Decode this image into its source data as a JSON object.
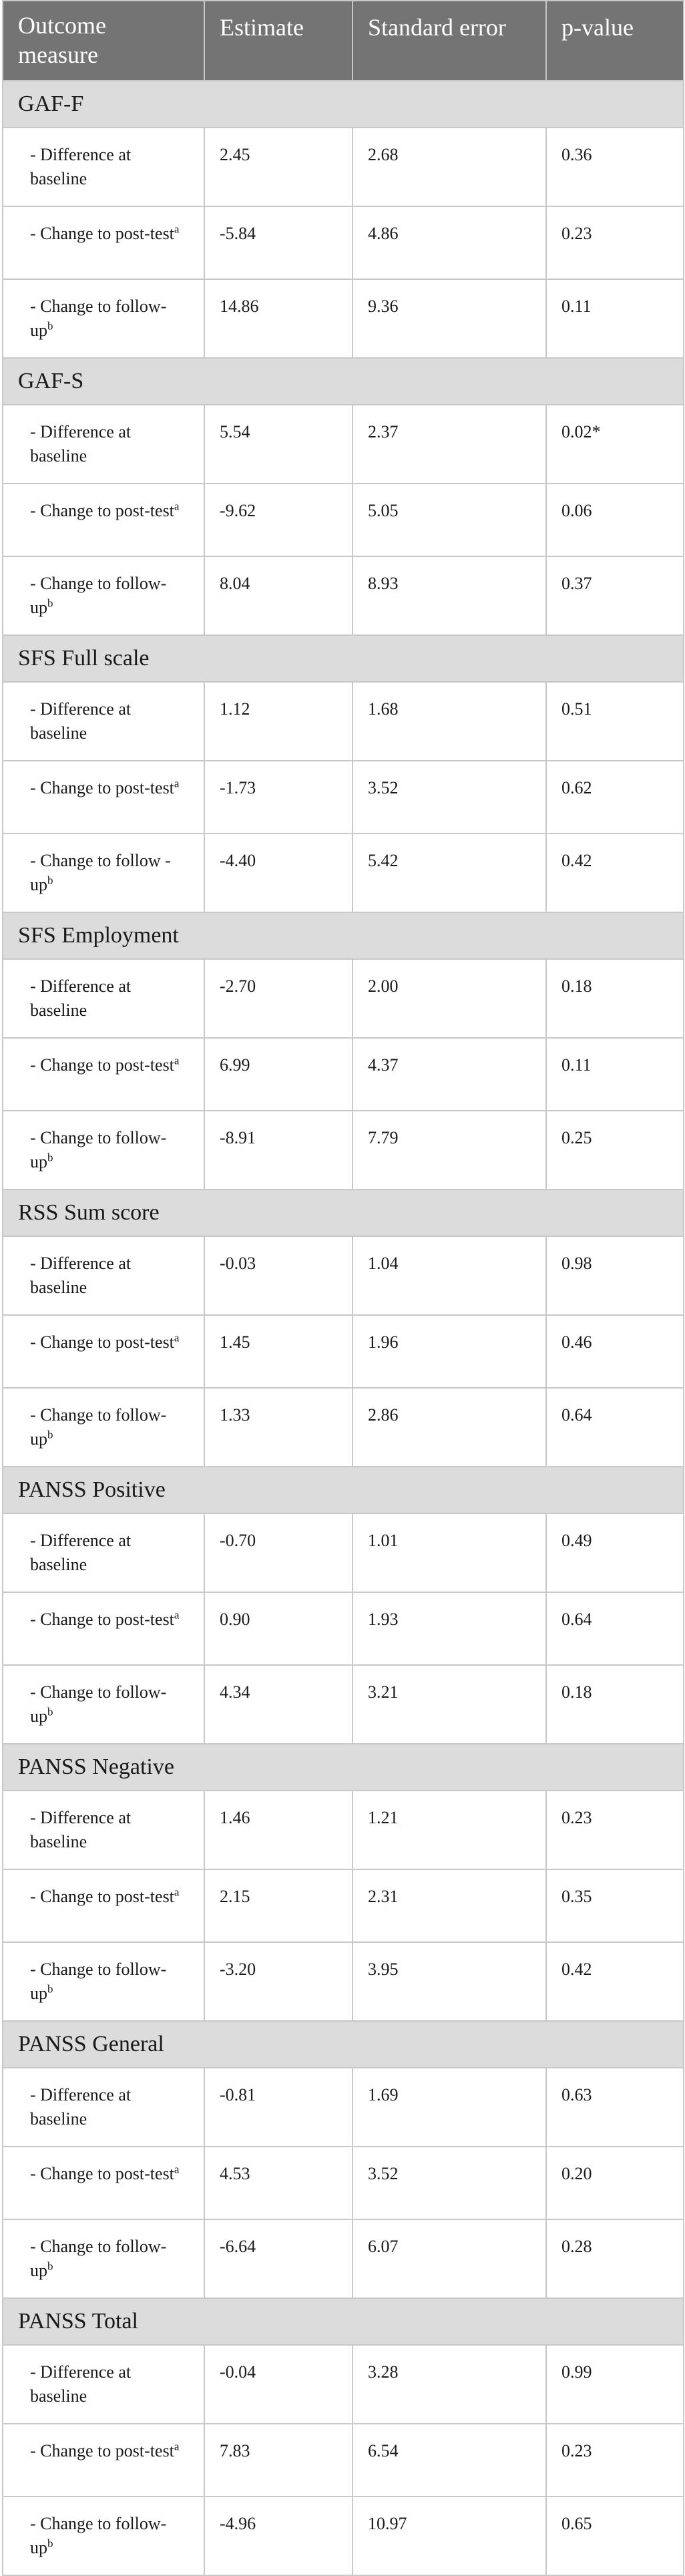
{
  "headers": [
    "Outcome measure",
    "Estimate",
    "Standard error",
    "p-value"
  ],
  "groups": [
    {
      "name": "GAF-F",
      "rows": [
        {
          "label": "- Difference at baseline",
          "sup": "",
          "estimate": "2.45",
          "se": "2.68",
          "p": "0.36"
        },
        {
          "label": "- Change to post-test",
          "sup": "a",
          "estimate": "-5.84",
          "se": "4.86",
          "p": "0.23"
        },
        {
          "label": "- Change to follow-up",
          "sup": "b",
          "estimate": "14.86",
          "se": "9.36",
          "p": "0.11"
        }
      ]
    },
    {
      "name": "GAF-S",
      "rows": [
        {
          "label": "- Difference at baseline",
          "sup": "",
          "estimate": "5.54",
          "se": "2.37",
          "p": "0.02*"
        },
        {
          "label": "- Change to post-test",
          "sup": "a",
          "estimate": "-9.62",
          "se": "5.05",
          "p": "0.06"
        },
        {
          "label": "- Change to follow-up",
          "sup": "b",
          "estimate": "8.04",
          "se": "8.93",
          "p": "0.37"
        }
      ]
    },
    {
      "name": "SFS Full scale",
      "rows": [
        {
          "label": "- Difference at baseline",
          "sup": "",
          "estimate": "1.12",
          "se": "1.68",
          "p": "0.51"
        },
        {
          "label": "- Change to post-test",
          "sup": "a",
          "estimate": "-1.73",
          "se": "3.52",
          "p": "0.62"
        },
        {
          "label": "- Change to follow -up",
          "sup": "b",
          "estimate": "-4.40",
          "se": "5.42",
          "p": "0.42"
        }
      ]
    },
    {
      "name": "SFS Employment",
      "rows": [
        {
          "label": "- Difference at baseline",
          "sup": "",
          "estimate": "-2.70",
          "se": "2.00",
          "p": "0.18"
        },
        {
          "label": "- Change to post-test",
          "sup": "a",
          "estimate": "6.99",
          "se": "4.37",
          "p": "0.11"
        },
        {
          "label": "- Change to follow-up",
          "sup": "b",
          "estimate": "-8.91",
          "se": "7.79",
          "p": "0.25"
        }
      ]
    },
    {
      "name": "RSS Sum score",
      "rows": [
        {
          "label": "- Difference at baseline",
          "sup": "",
          "estimate": "-0.03",
          "se": "1.04",
          "p": "0.98"
        },
        {
          "label": "- Change to post-test",
          "sup": "a",
          "estimate": "1.45",
          "se": "1.96",
          "p": "0.46"
        },
        {
          "label": "- Change to follow-up",
          "sup": "b",
          "estimate": "1.33",
          "se": "2.86",
          "p": "0.64"
        }
      ]
    },
    {
      "name": "PANSS Positive",
      "rows": [
        {
          "label": "- Difference at baseline",
          "sup": "",
          "estimate": "-0.70",
          "se": "1.01",
          "p": "0.49"
        },
        {
          "label": "- Change to post-test",
          "sup": "a",
          "estimate": "0.90",
          "se": "1.93",
          "p": "0.64"
        },
        {
          "label": "- Change to follow-up",
          "sup": "b",
          "estimate": "4.34",
          "se": "3.21",
          "p": "0.18"
        }
      ]
    },
    {
      "name": "PANSS Negative",
      "rows": [
        {
          "label": "- Difference at baseline",
          "sup": "",
          "estimate": "1.46",
          "se": "1.21",
          "p": "0.23"
        },
        {
          "label": "- Change to post-test",
          "sup": "a",
          "estimate": "2.15",
          "se": "2.31",
          "p": "0.35"
        },
        {
          "label": "- Change to follow-up",
          "sup": "b",
          "estimate": "-3.20",
          "se": "3.95",
          "p": "0.42"
        }
      ]
    },
    {
      "name": "PANSS General",
      "rows": [
        {
          "label": "- Difference at baseline",
          "sup": "",
          "estimate": "-0.81",
          "se": "1.69",
          "p": "0.63"
        },
        {
          "label": "- Change to post-test",
          "sup": "a",
          "estimate": "4.53",
          "se": "3.52",
          "p": "0.20"
        },
        {
          "label": "- Change to follow-up",
          "sup": "b",
          "estimate": "-6.64",
          "se": "6.07",
          "p": "0.28"
        }
      ]
    },
    {
      "name": "PANSS Total",
      "rows": [
        {
          "label": "- Difference at baseline",
          "sup": "",
          "estimate": "-0.04",
          "se": "3.28",
          "p": "0.99"
        },
        {
          "label": "- Change to post-test",
          "sup": "a",
          "estimate": "7.83",
          "se": "6.54",
          "p": "0.23"
        },
        {
          "label": "- Change to follow-up",
          "sup": "b",
          "estimate": "-4.96",
          "se": "10.97",
          "p": "0.65"
        }
      ]
    }
  ]
}
